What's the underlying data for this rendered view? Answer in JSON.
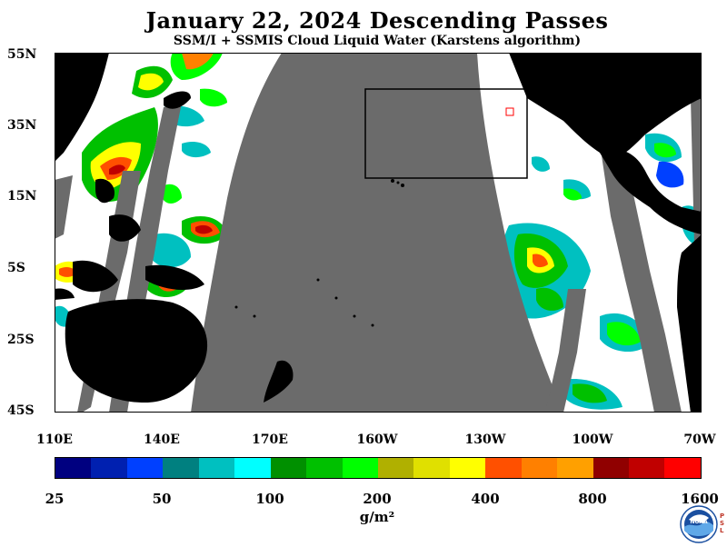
{
  "title": "January 22, 2024  Descending Passes",
  "subtitle": "SSM/I + SSMIS Cloud Liquid Water (Karstens algorithm)",
  "map": {
    "lat_labels": [
      "55N",
      "35N",
      "15N",
      "5S",
      "25S",
      "45S"
    ],
    "lon_labels": [
      "110E",
      "140E",
      "170E",
      "160W",
      "130W",
      "100W",
      "70W"
    ],
    "colors": {
      "land": "#000000",
      "no_data_swath": "#6b6b6b",
      "clear_ocean": "#ffffff",
      "box_outline": "#000000",
      "marker": "#ff0000"
    }
  },
  "colorbar": {
    "colors": [
      "#000080",
      "#0020b0",
      "#0040ff",
      "#008080",
      "#00c0c0",
      "#00ffff",
      "#009000",
      "#00c000",
      "#00ff00",
      "#b0b000",
      "#e0e000",
      "#ffff00",
      "#ff5000",
      "#ff8000",
      "#ffa000",
      "#900000",
      "#c00000",
      "#ff0000"
    ],
    "tick_labels": [
      "25",
      "50",
      "100",
      "200",
      "400",
      "800",
      "1600"
    ],
    "units": "g/m²"
  },
  "logo": {
    "text": "NOAA",
    "side_text": "PSL"
  }
}
